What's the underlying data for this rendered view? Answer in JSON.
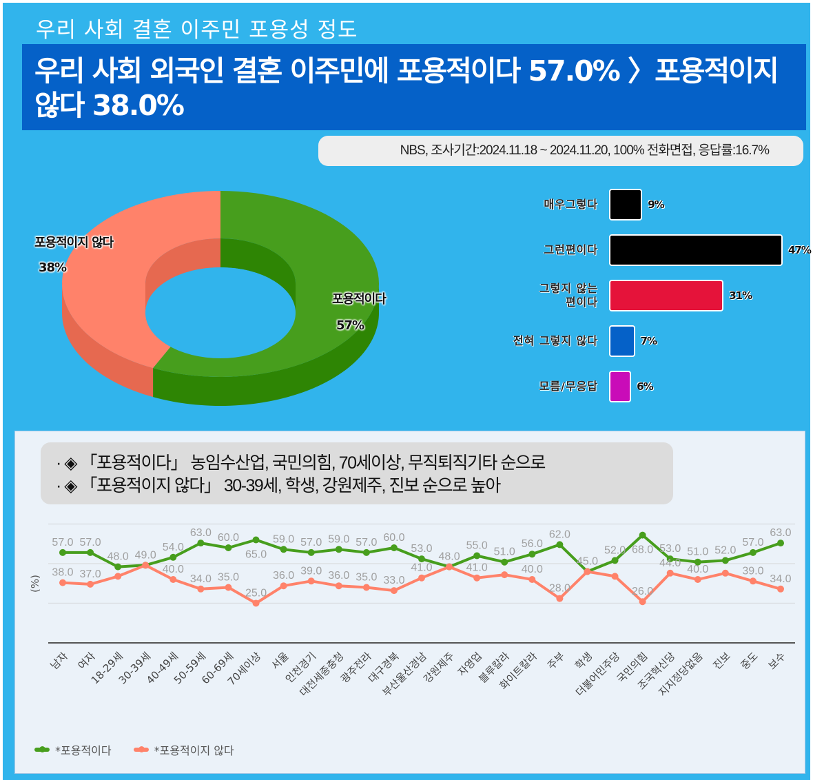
{
  "header": {
    "subtitle": "우리 사회 결혼 이주민 포용성 정도",
    "headline": "우리 사회 외국인 결혼 이주민에 포용적이다 57.0% 〉포용적이지 않다 38.0%",
    "source": "NBS, 조사기간:2024.11.18 ~ 2024.11.20, 100% 전화면접, 응답률:16.7%"
  },
  "notes": [
    "· ◈ 「포용적이다」 농임수산업, 국민의힘, 70세이상, 무직퇴직기타 순으로",
    "· ◈ 「포용적이지 않다」 30-39세, 학생, 강원제주, 진보 순으로 높아"
  ],
  "colors": {
    "background": "#31b4ec",
    "banner": "#0561c8",
    "green": "#479e1d",
    "green_side": "#2e8504",
    "salmon": "#ff826a",
    "salmon_side": "#e66950",
    "label_gray": "#a0a0a0"
  },
  "chart_data": [
    {
      "type": "pie",
      "variant": "3d-donut",
      "slices": [
        {
          "label": "포용적이다",
          "value": 57,
          "display": "57%",
          "color": "#479e1d"
        },
        {
          "label": "포용적이지 않다",
          "value": 38,
          "display": "38%",
          "color": "#ff826a"
        }
      ]
    },
    {
      "type": "bar",
      "orientation": "horizontal",
      "categories": [
        "매우그렇다",
        "그런편이다",
        "그렇지 않는 편이다",
        "전혀 그렇지 않다",
        "모름/무응답"
      ],
      "category_lines": [
        [
          "매우그렇다"
        ],
        [
          "그런편이다"
        ],
        [
          "그렇지 않는",
          "편이다"
        ],
        [
          "전혀 그렇지 않다"
        ],
        [
          "모름/무응답"
        ]
      ],
      "values": [
        9,
        47,
        31,
        7,
        6
      ],
      "value_labels": [
        "9%",
        "47%",
        "31%",
        "7%",
        "6%"
      ],
      "colors": [
        "#000000",
        "#000000",
        "#e5133a",
        "#0561c8",
        "#c90cb8"
      ],
      "xlim": [
        0,
        47
      ]
    },
    {
      "type": "line",
      "ylabel": "(%)",
      "ylim": [
        0,
        75
      ],
      "gridlines": [
        25,
        50,
        75
      ],
      "categories": [
        "남자",
        "여자",
        "18-29세",
        "30-39세",
        "40-49세",
        "50-59세",
        "60-69세",
        "70세이상",
        "서울",
        "인천경기",
        "대전세종충청",
        "광주전라",
        "대구경북",
        "부산울산경남",
        "강원제주",
        "자영업",
        "블루칼라",
        "화이트칼라",
        "주부",
        "학생",
        "더불어민주당",
        "국민의힘",
        "조국혁신당",
        "지지정당없음",
        "진보",
        "중도",
        "보수"
      ],
      "series": [
        {
          "name": "*포용적이다",
          "color": "#479e1d",
          "values": [
            57,
            57,
            48,
            49,
            54,
            63,
            60,
            65,
            59,
            57,
            59,
            57,
            60,
            53,
            48,
            55,
            51,
            56,
            62,
            45,
            52,
            68,
            53,
            51,
            52,
            57,
            63
          ],
          "labels": [
            "57.0",
            "57.0",
            "48.0",
            "49.0",
            "54.0",
            "63.0",
            "60.0",
            "65.0",
            "59.0",
            "57.0",
            "59.0",
            "57.0",
            "60.0",
            "53.0",
            "48.0",
            "55.0",
            "51.0",
            "56.0",
            "62.0",
            null,
            "52.0",
            "68.0",
            "53.0",
            "51.0",
            "52.0",
            "57.0",
            "63.0"
          ],
          "label_pos": [
            "a",
            "a",
            "a",
            "a",
            "a",
            "a",
            "a",
            "b",
            "a",
            "a",
            "a",
            "a",
            "a",
            "a",
            "a",
            "a",
            "a",
            "a",
            "a",
            "a",
            "a",
            "b",
            "a",
            "a",
            "a",
            "a",
            "a"
          ]
        },
        {
          "name": "*포용적이지 않다",
          "color": "#ff826a",
          "values": [
            38,
            37,
            42,
            49,
            40,
            34,
            35,
            25,
            36,
            39,
            36,
            35,
            33,
            41,
            48,
            41,
            43,
            40,
            28,
            45,
            42,
            26,
            44,
            40,
            44,
            39,
            34
          ],
          "labels": [
            "38.0",
            "37.0",
            null,
            null,
            "40.0",
            "34.0",
            "35.0",
            "25.0",
            "36.0",
            "39.0",
            "36.0",
            "35.0",
            "33.0",
            "41.0",
            null,
            "41.0",
            null,
            "40.0",
            "28.0",
            "45.0",
            null,
            "26.0",
            "44.0",
            "40.0",
            null,
            "39.0",
            "34.0"
          ],
          "label_pos": [
            "a",
            "a",
            "a",
            "a",
            "a",
            "a",
            "a",
            "a",
            "a",
            "a",
            "a",
            "a",
            "a",
            "a",
            "a",
            "a",
            "a",
            "a",
            "a",
            "a",
            "a",
            "a",
            "a",
            "a",
            "a",
            "a",
            "a"
          ]
        }
      ],
      "legend": "bottom-left"
    }
  ]
}
